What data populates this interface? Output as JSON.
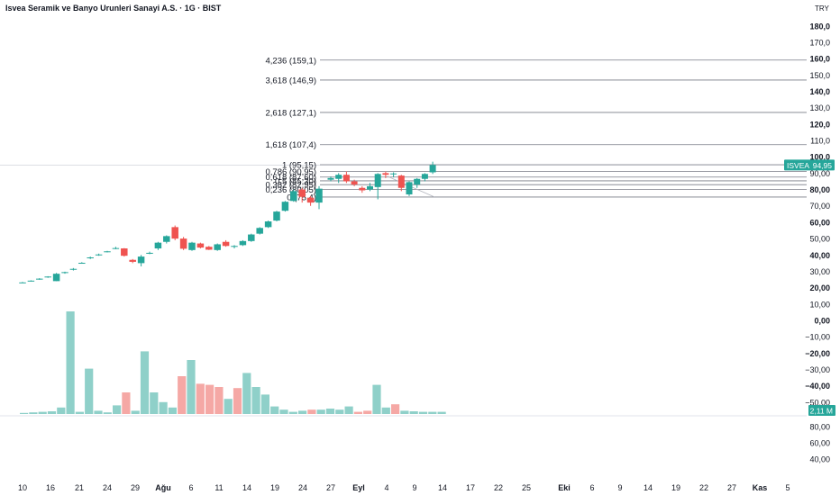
{
  "header": {
    "title": "Isvea Seramik ve Banyo Urunleri Sanayi A.S. · 1G · BIST",
    "currency": "TRY"
  },
  "colors": {
    "up": "#26a69a",
    "down": "#ef5350",
    "vol_up": "#8fd0c9",
    "vol_down": "#f5a8a5",
    "fib": "#787b86",
    "axis_text": "#131722"
  },
  "chart_data": [
    {
      "type": "candlestick",
      "symbol": "ISVEA",
      "last_price_label": "94,95",
      "price_axis": {
        "ticks": [
          180,
          170,
          160,
          150,
          140,
          130,
          120,
          110,
          100,
          90,
          80,
          70,
          60,
          50,
          40,
          30,
          20,
          10,
          0,
          -10,
          -20,
          -30,
          -40,
          -50
        ],
        "tick_labels": [
          "180,0",
          "170,0",
          "160,0",
          "150,0",
          "140,0",
          "130,0",
          "120,0",
          "110,0",
          "100,0",
          "90,00",
          "80,00",
          "70,00",
          "60,00",
          "50,00",
          "40,00",
          "30,00",
          "20,00",
          "10,00",
          "0,00",
          "−10,00",
          "−20,00",
          "−30,00",
          "−40,00",
          "−50,00"
        ],
        "bold_ticks": [
          180,
          160,
          140,
          120,
          100,
          80,
          60,
          40,
          20,
          0,
          -20,
          -40
        ]
      },
      "x_axis": {
        "labels": [
          "10",
          "16",
          "21",
          "24",
          "29",
          "Ağu",
          "6",
          "11",
          "14",
          "19",
          "24",
          "27",
          "Eyl",
          "4",
          "9",
          "14",
          "17",
          "22",
          "25",
          "Eki",
          "6",
          "9",
          "14",
          "19",
          "22",
          "27",
          "Kas",
          "5"
        ],
        "bold_labels": [
          "Ağu",
          "Eyl",
          "Eki",
          "Kas"
        ]
      },
      "fibonacci": [
        {
          "label": "4,236 (159,1)",
          "value": 159.1
        },
        {
          "label": "3,618 (146,9)",
          "value": 146.9
        },
        {
          "label": "2,618 (127,1)",
          "value": 127.1
        },
        {
          "label": "1,618 (107,4)",
          "value": 107.4
        },
        {
          "label": "1 (95,15)",
          "value": 95.15
        },
        {
          "label": "0,786 (90,95)",
          "value": 90.95
        },
        {
          "label": "0,618 (87,60)",
          "value": 87.6
        },
        {
          "label": "0,5 (85,30)",
          "value": 85.3
        },
        {
          "label": "0,382 (82,95)",
          "value": 82.95
        },
        {
          "label": "0,236 (80,05)",
          "value": 80.05
        },
        {
          "label": "0 (75,4)",
          "value": 75.4
        }
      ],
      "candles": [
        [
          23,
          23.5,
          22.8,
          23.2
        ],
        [
          24,
          24.5,
          23.8,
          24.3
        ],
        [
          25,
          25.8,
          24.8,
          25.5
        ],
        [
          26.5,
          27,
          26,
          26.8
        ],
        [
          24,
          29,
          24,
          28.5
        ],
        [
          29,
          29.8,
          28.5,
          29.5
        ],
        [
          31,
          32,
          30.5,
          31.5
        ],
        [
          35,
          35.6,
          34.8,
          35.2
        ],
        [
          38,
          39,
          37.5,
          38.5
        ],
        [
          40,
          40.8,
          39.5,
          40.3
        ],
        [
          42,
          42.5,
          41.5,
          42.2
        ],
        [
          44,
          45,
          43.5,
          44.2
        ],
        [
          44,
          44.2,
          39,
          39.5
        ],
        [
          37,
          37.5,
          35,
          35.8
        ],
        [
          35,
          40,
          33,
          39
        ],
        [
          41,
          42,
          40.5,
          41.3
        ],
        [
          44,
          48,
          43,
          47.5
        ],
        [
          48,
          52,
          47,
          51.5
        ],
        [
          57,
          58,
          49,
          50
        ],
        [
          50,
          51,
          43,
          43.8
        ],
        [
          43,
          48,
          42.5,
          47.5
        ],
        [
          47,
          47.5,
          44,
          44.5
        ],
        [
          45,
          45.5,
          43,
          43.2
        ],
        [
          43,
          47,
          42.5,
          46.5
        ],
        [
          48,
          49,
          45,
          45.5
        ],
        [
          45,
          46,
          44,
          45.5
        ],
        [
          46,
          49,
          45.5,
          48.5
        ],
        [
          48.5,
          53,
          48,
          52.5
        ],
        [
          53,
          57,
          52.5,
          56.5
        ],
        [
          57,
          61,
          56.5,
          60.5
        ],
        [
          61,
          67,
          60.5,
          66.5
        ],
        [
          67,
          73,
          66.5,
          72.5
        ],
        [
          73,
          80,
          72.5,
          79
        ],
        [
          80,
          81,
          72,
          75.5
        ],
        [
          75,
          76,
          70,
          72
        ],
        [
          72,
          82,
          68,
          80.5
        ]
      ],
      "candles_b": [
        [
          86,
          88,
          85,
          87
        ],
        [
          86.5,
          90,
          84,
          89
        ],
        [
          89,
          91,
          84,
          85
        ],
        [
          85,
          86,
          82,
          83
        ],
        [
          81,
          82,
          78,
          79.5
        ],
        [
          80,
          84,
          79,
          82
        ],
        [
          81.5,
          90,
          74,
          89.5
        ],
        [
          90,
          91,
          87,
          89
        ],
        [
          89.5,
          90.5,
          87.5,
          89.8
        ],
        [
          88.5,
          89,
          79,
          81
        ],
        [
          77,
          85,
          76,
          84.5
        ],
        [
          83,
          87,
          81,
          86.5
        ],
        [
          86.5,
          90,
          85,
          89.5
        ],
        [
          90.5,
          97,
          89.5,
          95
        ]
      ],
      "volume_axis": {
        "ticks": [
          80,
          60,
          40
        ],
        "tick_labels": [
          "80,00",
          "60,00",
          "40,00"
        ]
      },
      "volume_label": "2,11 M",
      "volumes": [
        [
          1,
          1
        ],
        [
          1.5,
          1
        ],
        [
          2,
          1
        ],
        [
          2.5,
          1
        ],
        [
          6,
          1
        ],
        [
          95,
          1
        ],
        [
          2,
          1
        ],
        [
          42,
          1
        ],
        [
          3,
          1
        ],
        [
          1.5,
          1
        ],
        [
          8,
          1
        ],
        [
          20,
          0
        ],
        [
          3,
          1
        ],
        [
          58,
          1
        ],
        [
          20,
          1
        ],
        [
          11,
          1
        ],
        [
          6,
          1
        ],
        [
          35,
          0
        ],
        [
          50,
          1
        ],
        [
          28,
          0
        ],
        [
          27,
          0
        ],
        [
          25,
          0
        ],
        [
          14,
          1
        ],
        [
          24,
          0
        ],
        [
          38,
          1
        ],
        [
          25,
          1
        ],
        [
          18,
          1
        ],
        [
          7,
          1
        ],
        [
          4,
          1
        ],
        [
          2,
          1
        ],
        [
          3,
          1
        ],
        [
          4,
          0
        ],
        [
          4,
          1
        ],
        [
          5,
          1
        ],
        [
          4,
          1
        ],
        [
          7,
          1
        ],
        [
          2,
          0
        ],
        [
          3,
          0
        ],
        [
          27,
          1
        ],
        [
          6,
          1
        ],
        [
          9,
          0
        ],
        [
          3,
          1
        ],
        [
          2.5,
          1
        ],
        [
          2,
          1
        ],
        [
          2,
          1
        ],
        [
          2,
          1
        ]
      ]
    }
  ]
}
